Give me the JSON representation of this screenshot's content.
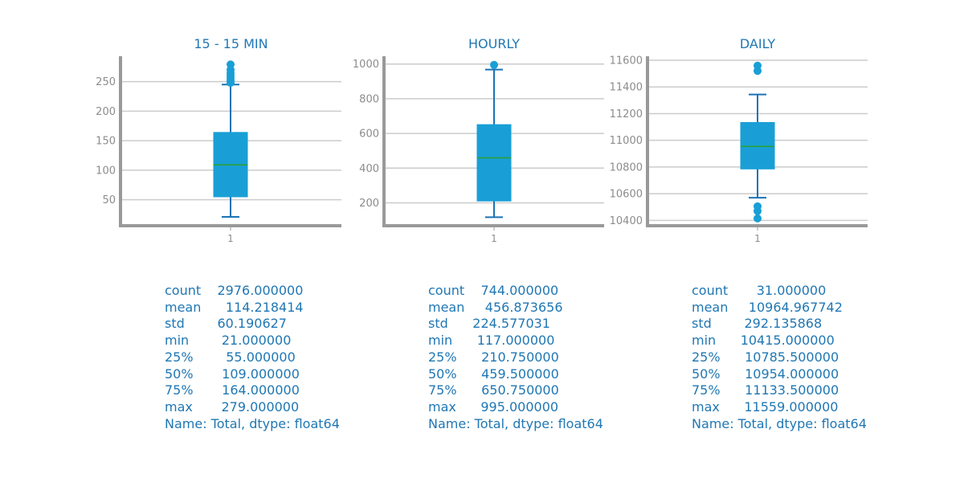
{
  "chart_data": [
    {
      "type": "box",
      "title": "15 - 15 MIN",
      "categories": [
        "1"
      ],
      "yticks": [
        50,
        100,
        150,
        200,
        250
      ],
      "box": {
        "whisker_low": 21,
        "q1": 55,
        "median": 109,
        "q3": 164,
        "whisker_high": 245
      },
      "outliers": [
        248,
        252,
        256,
        260,
        265,
        270,
        279
      ],
      "summary": [
        "count    2976.000000",
        "mean      114.218414",
        "std        60.190627",
        "min        21.000000",
        "25%        55.000000",
        "50%       109.000000",
        "75%       164.000000",
        "max       279.000000",
        "Name: Total, dtype: float64"
      ]
    },
    {
      "type": "box",
      "title": "HOURLY",
      "categories": [
        "1"
      ],
      "yticks": [
        200,
        400,
        600,
        800,
        1000
      ],
      "box": {
        "whisker_low": 117,
        "q1": 210.75,
        "median": 459.5,
        "q3": 650.75,
        "whisker_high": 968
      },
      "outliers": [
        995
      ],
      "summary": [
        "count    744.000000",
        "mean     456.873656",
        "std      224.577031",
        "min      117.000000",
        "25%      210.750000",
        "50%      459.500000",
        "75%      650.750000",
        "max      995.000000",
        "Name: Total, dtype: float64"
      ]
    },
    {
      "type": "box",
      "title": "DAILY",
      "categories": [
        "1"
      ],
      "yticks": [
        10400,
        10600,
        10800,
        11000,
        11200,
        11400,
        11600
      ],
      "box": {
        "whisker_low": 10570,
        "q1": 10785.5,
        "median": 10954,
        "q3": 11133.5,
        "whisker_high": 11343
      },
      "outliers": [
        10415,
        10470,
        10505,
        11520,
        11559
      ],
      "summary": [
        "count       31.000000",
        "mean     10964.967742",
        "std        292.135868",
        "min      10415.000000",
        "25%      10785.500000",
        "50%      10954.000000",
        "75%      11133.500000",
        "max      11559.000000",
        "Name: Total, dtype: float64"
      ]
    }
  ],
  "colors": {
    "box_fill": "#199fd6",
    "line": "#1a73b6",
    "median": "#2ca02c",
    "grid": "#cccccc",
    "axis": "#999999",
    "text": "#1f77b4",
    "tick_text": "#8c8c8c"
  }
}
